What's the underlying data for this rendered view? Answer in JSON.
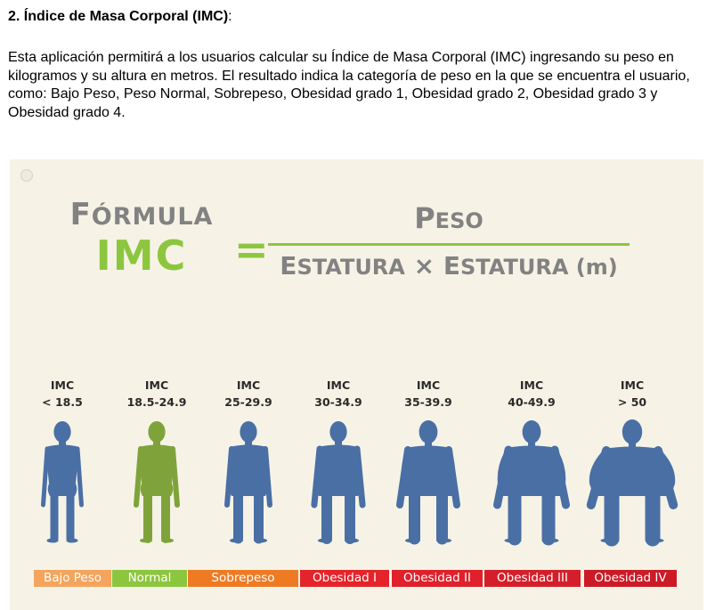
{
  "section": {
    "number": "2.",
    "title": "Índice de Masa Corporal (IMC)",
    "colon": ":"
  },
  "description": "Esta aplicación permitirá a los usuarios calcular su Índice de Masa Corporal (IMC) ingresando su peso en kilogramos y su altura en metros. El resultado indica la categoría de peso en la que se encuentra el usuario, como: Bajo Peso, Peso Normal, Sobrepeso, Obesidad grado 1, Obesidad grado 2, Obesidad grado 3 y Obesidad grado 4.",
  "infographic": {
    "formula": {
      "word_initial": "F",
      "word_rest": "ÓRMULA",
      "imc": "IMC",
      "equals": "=",
      "numerator_initial": "P",
      "numerator_rest": "ESO",
      "denominator_a_initial": "E",
      "denominator_a_rest": "STATURA",
      "times": " × ",
      "denominator_b_initial": "E",
      "denominator_b_rest": "STATURA",
      "unit": " (m)"
    },
    "colors": {
      "figure_blue": "#4a6fa5",
      "figure_green": "#7fa33a",
      "formula_green": "#8cc63f",
      "formula_gray": "#828282"
    },
    "categories": [
      {
        "line1": "IMC",
        "line2": "< 18.5",
        "bar": "Bajo Peso",
        "bar_color": "#f4a45c",
        "figure_color": "#4a6fa5",
        "build": "thin"
      },
      {
        "line1": "IMC",
        "line2": "18.5-24.9",
        "bar": "Normal",
        "bar_color": "#8cc63f",
        "figure_color": "#7fa33a",
        "build": "normal"
      },
      {
        "line1": "IMC",
        "line2": "25-29.9",
        "bar": "Sobrepeso",
        "bar_color": "#ee7b24",
        "figure_color": "#4a6fa5",
        "build": "overweight"
      },
      {
        "line1": "IMC",
        "line2": "30-34.9",
        "bar": "Obesidad I",
        "bar_color": "#e5232a",
        "figure_color": "#4a6fa5",
        "build": "obese1"
      },
      {
        "line1": "IMC",
        "line2": "35-39.9",
        "bar": "Obesidad II",
        "bar_color": "#e0202a",
        "figure_color": "#4a6fa5",
        "build": "obese2"
      },
      {
        "line1": "IMC",
        "line2": "40-49.9",
        "bar": "Obesidad III",
        "bar_color": "#d41f2b",
        "figure_color": "#4a6fa5",
        "build": "obese3"
      },
      {
        "line1": "IMC",
        "line2": "> 50",
        "bar": "Obesidad IV",
        "bar_color": "#cc1a26",
        "figure_color": "#4a6fa5",
        "build": "obese4"
      }
    ]
  }
}
